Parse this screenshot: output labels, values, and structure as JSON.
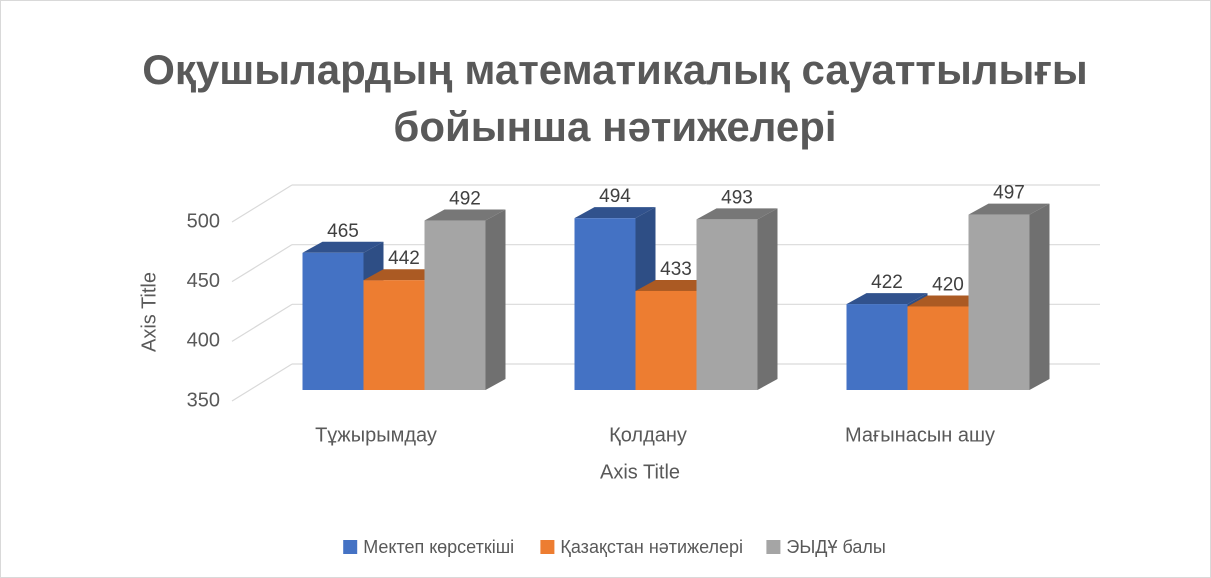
{
  "chart_data": {
    "type": "bar3d",
    "title": [
      "Оқушылардың математикалық сауаттылығы",
      "бойынша нәтижелері"
    ],
    "x_axis_title": "Axis Title",
    "y_axis_title": "Axis Title",
    "categories": [
      "Тұжырымдау",
      "Қолдану",
      "Мағынасын ашу"
    ],
    "series": [
      {
        "name": "Мектеп көрсеткіші",
        "color": "#4472c4",
        "values": [
          465,
          494,
          422
        ]
      },
      {
        "name": "Қазақстан нәтижелері",
        "color": "#ed7d31",
        "values": [
          442,
          433,
          420
        ]
      },
      {
        "name": "ЭЫДҰ балы",
        "color": "#a5a5a5",
        "values": [
          492,
          493,
          497
        ]
      }
    ],
    "ylim": [
      350,
      500
    ],
    "yticks": [
      350,
      400,
      450,
      500
    ],
    "grid": true,
    "legend": "bottom"
  }
}
